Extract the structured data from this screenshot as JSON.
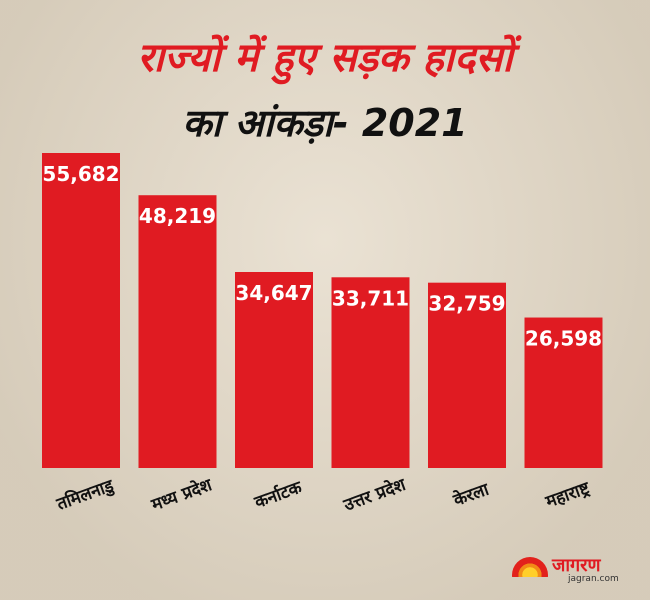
{
  "chart_data": {
    "type": "bar",
    "title": "राज्यों में हुए सड़क हादसों",
    "subtitle": "का आंकड़ा- 2021",
    "categories": [
      "तमिलनाडु",
      "मध्य प्रदेश",
      "कर्नाटक",
      "उत्तर प्रदेश",
      "केरला",
      "महाराष्ट्र"
    ],
    "values": [
      55682,
      48219,
      34647,
      33711,
      32759,
      26598
    ],
    "data_labels": [
      "55,682",
      "48,219",
      "34,647",
      "33,711",
      "32,759",
      "26,598"
    ],
    "xlabel": "",
    "ylabel": "",
    "ylim": [
      0,
      55682
    ],
    "grid": false,
    "bar_color": "#e01b22"
  },
  "branding": {
    "logo_name": "जागरण",
    "logo_url": "jagran.com"
  }
}
